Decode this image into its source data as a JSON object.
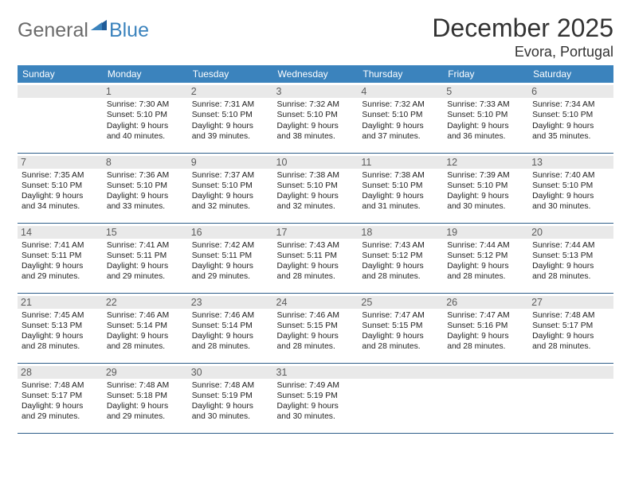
{
  "brand": {
    "general": "General",
    "blue": "Blue"
  },
  "title": "December 2025",
  "location": "Evora, Portugal",
  "colors": {
    "header_bg": "#3b83bd",
    "header_text": "#ffffff",
    "row_border": "#2f5f8a",
    "daynum_bg": "#e9e9e9",
    "daynum_text": "#5c5c5c",
    "body_text": "#222222",
    "logo_gray": "#6b6b6b",
    "logo_blue": "#3b83bd"
  },
  "weekdays": [
    "Sunday",
    "Monday",
    "Tuesday",
    "Wednesday",
    "Thursday",
    "Friday",
    "Saturday"
  ],
  "weeks": [
    [
      {
        "n": "",
        "sunrise": "",
        "sunset": "",
        "daylight": ""
      },
      {
        "n": "1",
        "sunrise": "Sunrise: 7:30 AM",
        "sunset": "Sunset: 5:10 PM",
        "daylight": "Daylight: 9 hours and 40 minutes."
      },
      {
        "n": "2",
        "sunrise": "Sunrise: 7:31 AM",
        "sunset": "Sunset: 5:10 PM",
        "daylight": "Daylight: 9 hours and 39 minutes."
      },
      {
        "n": "3",
        "sunrise": "Sunrise: 7:32 AM",
        "sunset": "Sunset: 5:10 PM",
        "daylight": "Daylight: 9 hours and 38 minutes."
      },
      {
        "n": "4",
        "sunrise": "Sunrise: 7:32 AM",
        "sunset": "Sunset: 5:10 PM",
        "daylight": "Daylight: 9 hours and 37 minutes."
      },
      {
        "n": "5",
        "sunrise": "Sunrise: 7:33 AM",
        "sunset": "Sunset: 5:10 PM",
        "daylight": "Daylight: 9 hours and 36 minutes."
      },
      {
        "n": "6",
        "sunrise": "Sunrise: 7:34 AM",
        "sunset": "Sunset: 5:10 PM",
        "daylight": "Daylight: 9 hours and 35 minutes."
      }
    ],
    [
      {
        "n": "7",
        "sunrise": "Sunrise: 7:35 AM",
        "sunset": "Sunset: 5:10 PM",
        "daylight": "Daylight: 9 hours and 34 minutes."
      },
      {
        "n": "8",
        "sunrise": "Sunrise: 7:36 AM",
        "sunset": "Sunset: 5:10 PM",
        "daylight": "Daylight: 9 hours and 33 minutes."
      },
      {
        "n": "9",
        "sunrise": "Sunrise: 7:37 AM",
        "sunset": "Sunset: 5:10 PM",
        "daylight": "Daylight: 9 hours and 32 minutes."
      },
      {
        "n": "10",
        "sunrise": "Sunrise: 7:38 AM",
        "sunset": "Sunset: 5:10 PM",
        "daylight": "Daylight: 9 hours and 32 minutes."
      },
      {
        "n": "11",
        "sunrise": "Sunrise: 7:38 AM",
        "sunset": "Sunset: 5:10 PM",
        "daylight": "Daylight: 9 hours and 31 minutes."
      },
      {
        "n": "12",
        "sunrise": "Sunrise: 7:39 AM",
        "sunset": "Sunset: 5:10 PM",
        "daylight": "Daylight: 9 hours and 30 minutes."
      },
      {
        "n": "13",
        "sunrise": "Sunrise: 7:40 AM",
        "sunset": "Sunset: 5:10 PM",
        "daylight": "Daylight: 9 hours and 30 minutes."
      }
    ],
    [
      {
        "n": "14",
        "sunrise": "Sunrise: 7:41 AM",
        "sunset": "Sunset: 5:11 PM",
        "daylight": "Daylight: 9 hours and 29 minutes."
      },
      {
        "n": "15",
        "sunrise": "Sunrise: 7:41 AM",
        "sunset": "Sunset: 5:11 PM",
        "daylight": "Daylight: 9 hours and 29 minutes."
      },
      {
        "n": "16",
        "sunrise": "Sunrise: 7:42 AM",
        "sunset": "Sunset: 5:11 PM",
        "daylight": "Daylight: 9 hours and 29 minutes."
      },
      {
        "n": "17",
        "sunrise": "Sunrise: 7:43 AM",
        "sunset": "Sunset: 5:11 PM",
        "daylight": "Daylight: 9 hours and 28 minutes."
      },
      {
        "n": "18",
        "sunrise": "Sunrise: 7:43 AM",
        "sunset": "Sunset: 5:12 PM",
        "daylight": "Daylight: 9 hours and 28 minutes."
      },
      {
        "n": "19",
        "sunrise": "Sunrise: 7:44 AM",
        "sunset": "Sunset: 5:12 PM",
        "daylight": "Daylight: 9 hours and 28 minutes."
      },
      {
        "n": "20",
        "sunrise": "Sunrise: 7:44 AM",
        "sunset": "Sunset: 5:13 PM",
        "daylight": "Daylight: 9 hours and 28 minutes."
      }
    ],
    [
      {
        "n": "21",
        "sunrise": "Sunrise: 7:45 AM",
        "sunset": "Sunset: 5:13 PM",
        "daylight": "Daylight: 9 hours and 28 minutes."
      },
      {
        "n": "22",
        "sunrise": "Sunrise: 7:46 AM",
        "sunset": "Sunset: 5:14 PM",
        "daylight": "Daylight: 9 hours and 28 minutes."
      },
      {
        "n": "23",
        "sunrise": "Sunrise: 7:46 AM",
        "sunset": "Sunset: 5:14 PM",
        "daylight": "Daylight: 9 hours and 28 minutes."
      },
      {
        "n": "24",
        "sunrise": "Sunrise: 7:46 AM",
        "sunset": "Sunset: 5:15 PM",
        "daylight": "Daylight: 9 hours and 28 minutes."
      },
      {
        "n": "25",
        "sunrise": "Sunrise: 7:47 AM",
        "sunset": "Sunset: 5:15 PM",
        "daylight": "Daylight: 9 hours and 28 minutes."
      },
      {
        "n": "26",
        "sunrise": "Sunrise: 7:47 AM",
        "sunset": "Sunset: 5:16 PM",
        "daylight": "Daylight: 9 hours and 28 minutes."
      },
      {
        "n": "27",
        "sunrise": "Sunrise: 7:48 AM",
        "sunset": "Sunset: 5:17 PM",
        "daylight": "Daylight: 9 hours and 28 minutes."
      }
    ],
    [
      {
        "n": "28",
        "sunrise": "Sunrise: 7:48 AM",
        "sunset": "Sunset: 5:17 PM",
        "daylight": "Daylight: 9 hours and 29 minutes."
      },
      {
        "n": "29",
        "sunrise": "Sunrise: 7:48 AM",
        "sunset": "Sunset: 5:18 PM",
        "daylight": "Daylight: 9 hours and 29 minutes."
      },
      {
        "n": "30",
        "sunrise": "Sunrise: 7:48 AM",
        "sunset": "Sunset: 5:19 PM",
        "daylight": "Daylight: 9 hours and 30 minutes."
      },
      {
        "n": "31",
        "sunrise": "Sunrise: 7:49 AM",
        "sunset": "Sunset: 5:19 PM",
        "daylight": "Daylight: 9 hours and 30 minutes."
      },
      {
        "n": "",
        "sunrise": "",
        "sunset": "",
        "daylight": ""
      },
      {
        "n": "",
        "sunrise": "",
        "sunset": "",
        "daylight": ""
      },
      {
        "n": "",
        "sunrise": "",
        "sunset": "",
        "daylight": ""
      }
    ]
  ]
}
